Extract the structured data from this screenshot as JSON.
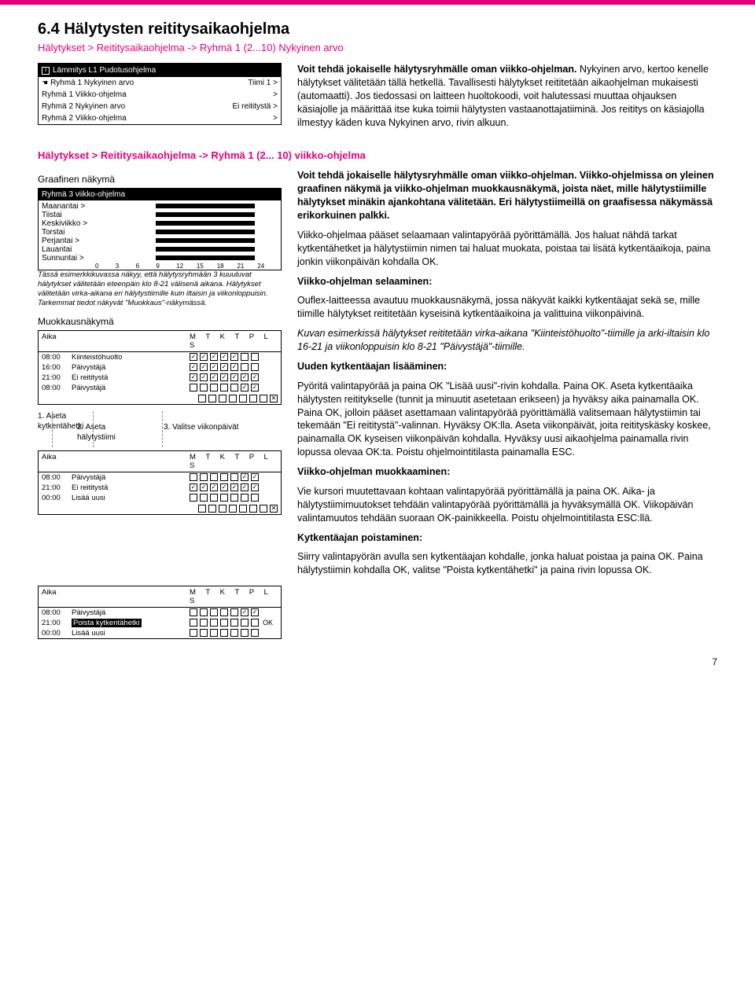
{
  "colors": {
    "accent": "#e6007e",
    "text": "#000000",
    "bg": "#ffffff"
  },
  "heading": "6.4 Hälytysten reititysaikaohjelma",
  "breadcrumb1": "Hälytykset > Reititysaikaohjelma -> Ryhmä 1 (2...10) Nykyinen arvo",
  "lcd1": {
    "title": "Lämmitys L1 Pudotusohjelma",
    "hand_row_left": "Ryhmä 1  Nykyinen arvo",
    "hand_row_right": "Tiimi 1 >",
    "rows": [
      {
        "l": "Ryhmä 1 Viikko-ohjelma",
        "r": ">"
      },
      {
        "l": "Ryhmä 2  Nykyinen arvo",
        "r": "Ei reititystä >"
      },
      {
        "l": "Ryhmä 2 Viikko-ohjelma",
        "r": ">"
      }
    ]
  },
  "intro_bold": "Voit tehdä jokaiselle hälytysryhmälle oman viikko-ohjelman.",
  "intro_rest": " Nykyinen arvo, kertoo kenelle hälytykset välitetään tällä hetkellä. Tavallisesti hälytykset reititetään aikaohjelman mukaisesti (automaatti). Jos tiedossasi on laitteen huoltokoodi, voit halutessasi muuttaa ohjauksen käsiajolle ja määrittää itse kuka toimii hälytysten vastaanottajatiiminä. Jos reititys on käsiajolla  ilmestyy käden kuva Nykyinen arvo, rivin alkuun.",
  "breadcrumb2": "Hälytykset > Reititysaikaohjelma -> Ryhmä 1 (2... 10) viikko-ohjelma",
  "graafinen_label": "Graafinen näkymä",
  "chart": {
    "title": "Ryhmä 3 viikko-ohjelma",
    "days": [
      "Maanantai >",
      "Tiistai",
      "Keskiviikko >",
      "Torstai",
      "Perjantai >",
      "Lauantai",
      "Sunnuntai >"
    ],
    "bars": [
      {
        "day": 0,
        "start": 8,
        "end": 21
      },
      {
        "day": 1,
        "start": 8,
        "end": 21
      },
      {
        "day": 2,
        "start": 8,
        "end": 21
      },
      {
        "day": 3,
        "start": 8,
        "end": 21
      },
      {
        "day": 4,
        "start": 8,
        "end": 21
      },
      {
        "day": 5,
        "start": 8,
        "end": 21
      },
      {
        "day": 6,
        "start": 8,
        "end": 21
      }
    ],
    "axis": [
      "0",
      "3",
      "6",
      "9",
      "12",
      "15",
      "18",
      "21",
      "24"
    ]
  },
  "chart_caption": "Tässä esimerkkikuvassa näkyy, että hälytysryhmään 3 kuuuluvat hälytykset välitetään eteenpäin klo 8-21 välisenä aikana. Hälytykset välitetään virka-aikana eri hälytystiimille kuin iltaisin ja  viikonloppuisin. Tarkemmat tiedot näkyvät \"Muokkaus\"-näkymässä.",
  "muokkaus_label": "Muokkausnäkymä",
  "sched1": {
    "head_time": "Aika",
    "head_days": "M T K  T P L S",
    "rows": [
      {
        "t": "08:00",
        "team": "Kiinteistöhuolto",
        "c": [
          1,
          1,
          1,
          1,
          1,
          0,
          0
        ]
      },
      {
        "t": "16:00",
        "team": "Päivystäjä",
        "c": [
          1,
          1,
          1,
          1,
          1,
          0,
          0
        ]
      },
      {
        "t": "21:00",
        "team": "Ei reititystä",
        "c": [
          1,
          1,
          1,
          1,
          1,
          1,
          1
        ]
      },
      {
        "t": "08:00",
        "team": "Päivystäjä",
        "c": [
          0,
          0,
          0,
          0,
          0,
          1,
          1
        ]
      }
    ]
  },
  "steps": {
    "s1": "1. Aseta kytkentähetki",
    "s2": "2. Aseta hälytystiimi",
    "s3": "3. Valitse viikonpäivät"
  },
  "sched2": {
    "head_time": "Aika",
    "head_days": "M T K  T P L S",
    "rows": [
      {
        "t": "08:00",
        "team": "Päivystäjä",
        "c": [
          0,
          0,
          0,
          0,
          0,
          1,
          1
        ]
      },
      {
        "t": "21:00",
        "team": "Ei reititystä",
        "c": [
          1,
          1,
          1,
          1,
          1,
          1,
          1
        ]
      },
      {
        "t": "00:00",
        "team": "Lisää uusi",
        "c": [
          0,
          0,
          0,
          0,
          0,
          0,
          0
        ]
      }
    ],
    "vlines": [
      38,
      100,
      160
    ]
  },
  "sched3": {
    "head_time": "Aika",
    "head_days": "M T K  T P L S",
    "rows": [
      {
        "t": "08:00",
        "team": "Päivystäjä",
        "inv": false,
        "c": [
          0,
          0,
          0,
          0,
          0,
          1,
          1
        ]
      },
      {
        "t": "21:00",
        "team": "Poista kytkentähetki",
        "inv": true,
        "c": [
          0,
          0,
          0,
          0,
          0,
          0,
          0
        ],
        "ok": "OK"
      },
      {
        "t": "00:00",
        "team": "Lisää uusi",
        "inv": false,
        "c": [
          0,
          0,
          0,
          0,
          0,
          0,
          0
        ]
      }
    ]
  },
  "right2": {
    "p1_bold": "Voit tehdä jokaiselle hälytysryhmälle oman viikko-ohjelman. Viikko-ohjelmissa on yleinen graafinen näkymä ja viikko-ohjelman muokkausnäkymä, joista näet, mille hälytystiimille hälytykset minäkin ajankohtana välitetään. Eri hälytystiimeillä on graafisessa näkymässä erikorkuinen palkki.",
    "p2": "Viikko-ohjelmaa pääset selaamaan valintapyörää pyörittämällä. Jos haluat nähdä tarkat kytkentähetket ja hälytystiimin nimen tai haluat muokata, poistaa tai lisätä kytkentäaikoja, paina jonkin viikonpäivän kohdalla OK.",
    "h_selaus": "Viikko-ohjelman selaaminen:",
    "p3a": "Ouflex-laitteessa avautuu muokkausnäkymä, jossa näkyvät kaikki kytkentäajat sekä se, mille tiimille hälytykset reititetään kyseisinä kytkentäaikoina ja valittuina viikonpäivinä.",
    "p3b": "Kuvan esimerkissä hälytykset reititetään virka-aikana \"Kiinteistöhuolto\"-tiimille ja arki-iltaisin klo 16-21 ja viikonloppuisin klo 8-21 \"Päivystäjä\"-tiimille.",
    "h_uusi": "Uuden kytkentäajan lisääminen:",
    "p4": "Pyöritä valintapyörää ja paina OK \"Lisää uusi\"-rivin kohdalla. Paina OK. Aseta kytkentäaika hälytysten reititykselle (tunnit ja minuutit asetetaan erikseen) ja hyväksy aika painamalla OK.\nPaina OK, jolloin pääset asettamaan valintapyörää pyörittämällä valitsemaan hälytystiimin tai tekemään \"Ei reititystä\"-valinnan. Hyväksy OK:lla. Aseta viikonpäivät, joita reitityskäsky koskee, painamalla OK kyseisen viikonpäivän kohdalla. Hyväksy uusi aikaohjelma painamalla rivin lopussa olevaa OK:ta. Poistu ohjelmointitilasta painamalla ESC.",
    "h_muok": "Viikko-ohjelman muokkaaminen:",
    "p5": "Vie kursori muutettavaan kohtaan valintapyörää pyörittämällä ja paina OK. Aika- ja hälytystiimimuutokset tehdään valintapyörää pyörittämällä ja hyväksymällä OK. Viikopäivän valintamuutos tehdään suoraan OK-painikkeella. Poistu ohjelmointitilasta ESC:llä.",
    "h_poista": "Kytkentäajan poistaminen:",
    "p6": "Siirry valintapyörän avulla sen kytkentäajan kohdalle, jonka haluat poistaa ja paina OK. Paina hälytystiimin kohdalla OK, valitse \"Poista kytkentähetki\" ja paina rivin lopussa OK."
  },
  "page_number": "7"
}
